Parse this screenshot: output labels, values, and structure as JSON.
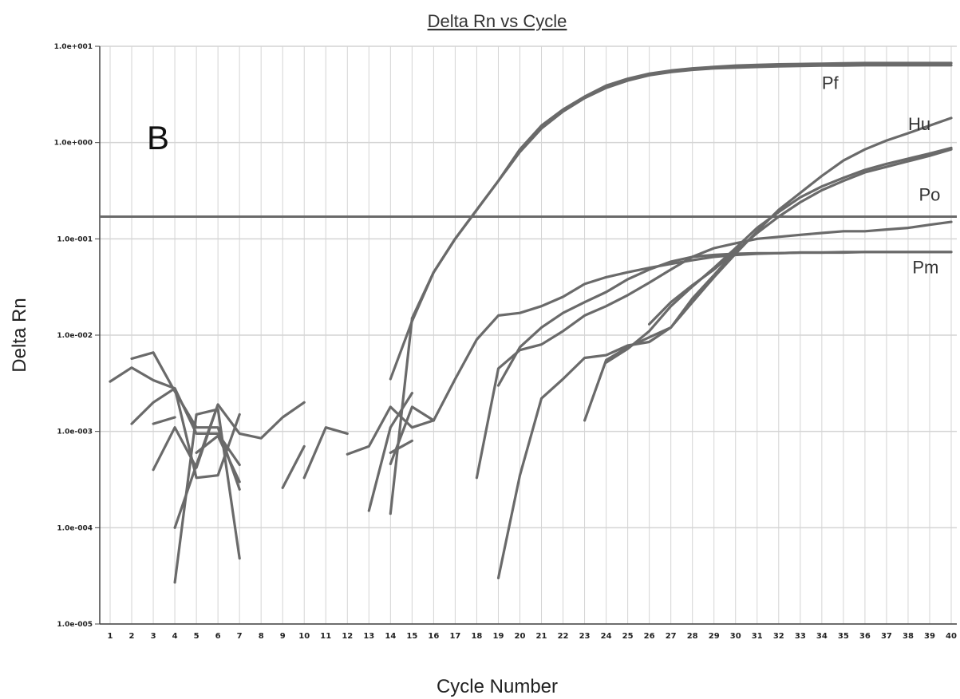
{
  "chart_data": {
    "type": "line",
    "title": "Delta Rn vs Cycle",
    "xlabel": "Cycle Number",
    "ylabel": "Delta Rn",
    "panel_label": "B",
    "y_scale": "log",
    "ylim": [
      1e-05,
      10
    ],
    "xlim": [
      0.5,
      40
    ],
    "x_ticks": [
      "1",
      "2",
      "3",
      "4",
      "5",
      "6",
      "7",
      "8",
      "9",
      "10",
      "11",
      "12",
      "13",
      "14",
      "15",
      "16",
      "17",
      "18",
      "19",
      "20",
      "21",
      "22",
      "23",
      "24",
      "25",
      "26",
      "27",
      "28",
      "29",
      "30",
      "31",
      "32",
      "33",
      "34",
      "35",
      "36",
      "37",
      "38",
      "39",
      "40"
    ],
    "y_ticks": [
      {
        "value": 10,
        "label": "1.0e+001"
      },
      {
        "value": 1,
        "label": "1.0e+000"
      },
      {
        "value": 0.1,
        "label": "1.0e-001"
      },
      {
        "value": 0.01,
        "label": "1.0e-002"
      },
      {
        "value": 0.001,
        "label": "1.0e-003"
      },
      {
        "value": 0.0001,
        "label": "1.0e-004"
      },
      {
        "value": 1e-05,
        "label": "1.0e-005"
      }
    ],
    "grid": true,
    "threshold": 0.17,
    "colors": {
      "line": "#6a6a6a",
      "threshold": "#6a6a6a",
      "grid": "#d4d4d4",
      "axis": "#444444"
    },
    "curve_labels": [
      {
        "text": "Pf",
        "x": 34,
        "y": 3.6
      },
      {
        "text": "Hu",
        "x": 38,
        "y": 1.35
      },
      {
        "text": "Po",
        "x": 38.5,
        "y": 0.25
      },
      {
        "text": "Pm",
        "x": 38.2,
        "y": 0.044
      }
    ],
    "series": [
      {
        "x": [
          14,
          15,
          16,
          17,
          18,
          19,
          20,
          21,
          22,
          23,
          24,
          25,
          26,
          27,
          28,
          29,
          30,
          31,
          32,
          33,
          34,
          35,
          36,
          37,
          38,
          39,
          40
        ],
        "values": [
          0.0035,
          0.014,
          0.045,
          0.1,
          0.2,
          0.4,
          0.8,
          1.4,
          2.1,
          2.9,
          3.7,
          4.4,
          5.0,
          5.4,
          5.7,
          5.9,
          6.0,
          6.1,
          6.2,
          6.25,
          6.3,
          6.3,
          6.35,
          6.35,
          6.35,
          6.35,
          6.35
        ]
      },
      {
        "x": [
          15,
          16,
          17,
          18,
          19,
          20,
          21,
          22,
          23,
          24,
          25,
          26,
          27,
          28,
          29,
          30,
          31,
          32,
          33,
          34,
          35,
          36,
          37,
          38,
          39,
          40
        ],
        "values": [
          0.015,
          0.045,
          0.1,
          0.2,
          0.4,
          0.85,
          1.5,
          2.2,
          3.0,
          3.9,
          4.6,
          5.2,
          5.6,
          5.9,
          6.1,
          6.3,
          6.4,
          6.5,
          6.55,
          6.6,
          6.65,
          6.7,
          6.7,
          6.7,
          6.7,
          6.7
        ]
      },
      {
        "x": [
          23,
          24,
          25,
          26,
          27,
          28,
          29,
          30,
          31,
          32,
          33,
          34,
          35,
          36,
          37,
          38,
          39,
          40
        ],
        "values": [
          0.0013,
          0.0055,
          0.0075,
          0.0095,
          0.012,
          0.022,
          0.04,
          0.07,
          0.12,
          0.2,
          0.3,
          0.45,
          0.65,
          0.85,
          1.05,
          1.25,
          1.5,
          1.8
        ]
      },
      {
        "x": [
          24,
          25,
          26,
          27,
          28,
          29,
          30,
          31,
          32,
          33,
          34,
          35,
          36,
          37,
          38,
          39,
          40
        ],
        "values": [
          0.0052,
          0.0072,
          0.011,
          0.02,
          0.032,
          0.05,
          0.08,
          0.13,
          0.19,
          0.27,
          0.35,
          0.43,
          0.52,
          0.6,
          0.68,
          0.77,
          0.88
        ]
      },
      {
        "x": [
          26,
          27,
          28,
          29,
          30,
          31,
          32,
          33,
          34,
          35,
          36,
          37,
          38,
          39,
          40
        ],
        "values": [
          0.013,
          0.022,
          0.033,
          0.048,
          0.075,
          0.115,
          0.17,
          0.24,
          0.32,
          0.4,
          0.49,
          0.56,
          0.64,
          0.73,
          0.85
        ]
      },
      {
        "x": [
          18,
          19,
          20,
          21,
          22,
          23,
          24,
          25,
          26,
          27,
          28,
          29,
          30,
          31,
          32,
          33,
          34,
          35,
          36,
          37,
          38,
          39,
          40
        ],
        "values": [
          0.00033,
          0.0045,
          0.007,
          0.008,
          0.011,
          0.016,
          0.02,
          0.026,
          0.035,
          0.048,
          0.065,
          0.08,
          0.09,
          0.1,
          0.105,
          0.11,
          0.115,
          0.12,
          0.12,
          0.125,
          0.13,
          0.14,
          0.15
        ]
      },
      {
        "x": [
          19,
          20,
          21,
          22,
          23,
          24,
          25,
          26,
          27,
          28,
          29,
          30,
          31,
          32,
          33,
          34,
          35,
          36,
          37,
          38,
          39,
          40
        ],
        "values": [
          0.003,
          0.0075,
          0.012,
          0.017,
          0.022,
          0.028,
          0.038,
          0.048,
          0.058,
          0.065,
          0.068,
          0.07,
          0.071,
          0.071,
          0.072,
          0.072,
          0.072,
          0.073,
          0.073,
          0.073,
          0.073,
          0.073
        ]
      },
      {
        "x": [
          16,
          17,
          18,
          19,
          20,
          21,
          22,
          23,
          24,
          25,
          26,
          27,
          28,
          29,
          30,
          31,
          32,
          33,
          34,
          35,
          36,
          37,
          38,
          39,
          40
        ],
        "values": [
          0.0013,
          0.0035,
          0.009,
          0.016,
          0.017,
          0.02,
          0.025,
          0.034,
          0.04,
          0.045,
          0.05,
          0.055,
          0.06,
          0.065,
          0.068,
          0.07,
          0.071,
          0.072,
          0.072,
          0.073,
          0.073,
          0.073,
          0.073,
          0.073,
          0.073
        ]
      },
      {
        "x": [
          19,
          20,
          21,
          22,
          23,
          24,
          25,
          26,
          27,
          28,
          29,
          30
        ],
        "values": [
          3e-05,
          0.00035,
          0.0022,
          0.0035,
          0.0058,
          0.0062,
          0.0078,
          0.0085,
          0.012,
          0.024,
          0.042,
          0.075
        ]
      },
      {
        "x": [
          1,
          2,
          3,
          4,
          5,
          6,
          7
        ],
        "values": [
          0.0033,
          0.0046,
          0.0034,
          0.0028,
          0.00095,
          0.00095,
          0.00045
        ]
      },
      {
        "x": [
          2,
          3,
          4,
          5,
          6,
          7
        ],
        "values": [
          0.0057,
          0.0066,
          0.0026,
          0.0011,
          0.0011,
          0.00025
        ]
      },
      {
        "x": [
          2,
          3,
          4,
          5,
          6,
          7
        ],
        "values": [
          0.0012,
          0.002,
          0.0028,
          0.00033,
          0.00035,
          0.0015
        ]
      },
      {
        "x": [
          3,
          4,
          5,
          6
        ],
        "values": [
          0.0004,
          0.0011,
          0.00042,
          0.0019
        ]
      },
      {
        "x": [
          3,
          4
        ],
        "values": [
          0.0012,
          0.0014
        ]
      },
      {
        "x": [
          4,
          5,
          6,
          7
        ],
        "values": [
          2.7e-05,
          0.0015,
          0.0017,
          4.8e-05
        ]
      },
      {
        "x": [
          4,
          5,
          6,
          7,
          8,
          9,
          10
        ],
        "values": [
          0.0001,
          0.00045,
          0.0019,
          0.00095,
          0.00085,
          0.0014,
          0.002
        ]
      },
      {
        "x": [
          5,
          6,
          7
        ],
        "values": [
          0.0006,
          0.0009,
          0.0003
        ]
      },
      {
        "x": [
          9,
          10
        ],
        "values": [
          0.00026,
          0.0007
        ]
      },
      {
        "x": [
          10,
          11,
          12
        ],
        "values": [
          0.00033,
          0.0011,
          0.00095
        ]
      },
      {
        "x": [
          12,
          13,
          14,
          15,
          16
        ],
        "values": [
          0.00058,
          0.0007,
          0.0018,
          0.0011,
          0.0013
        ]
      },
      {
        "x": [
          13,
          14,
          15
        ],
        "values": [
          0.00015,
          0.0011,
          0.0025
        ]
      },
      {
        "x": [
          14,
          15,
          16
        ],
        "values": [
          0.00046,
          0.0018,
          0.0013
        ]
      },
      {
        "x": [
          14,
          15
        ],
        "values": [
          0.00014,
          0.015
        ]
      },
      {
        "x": [
          14,
          15
        ],
        "values": [
          0.0006,
          0.0008
        ]
      }
    ]
  }
}
